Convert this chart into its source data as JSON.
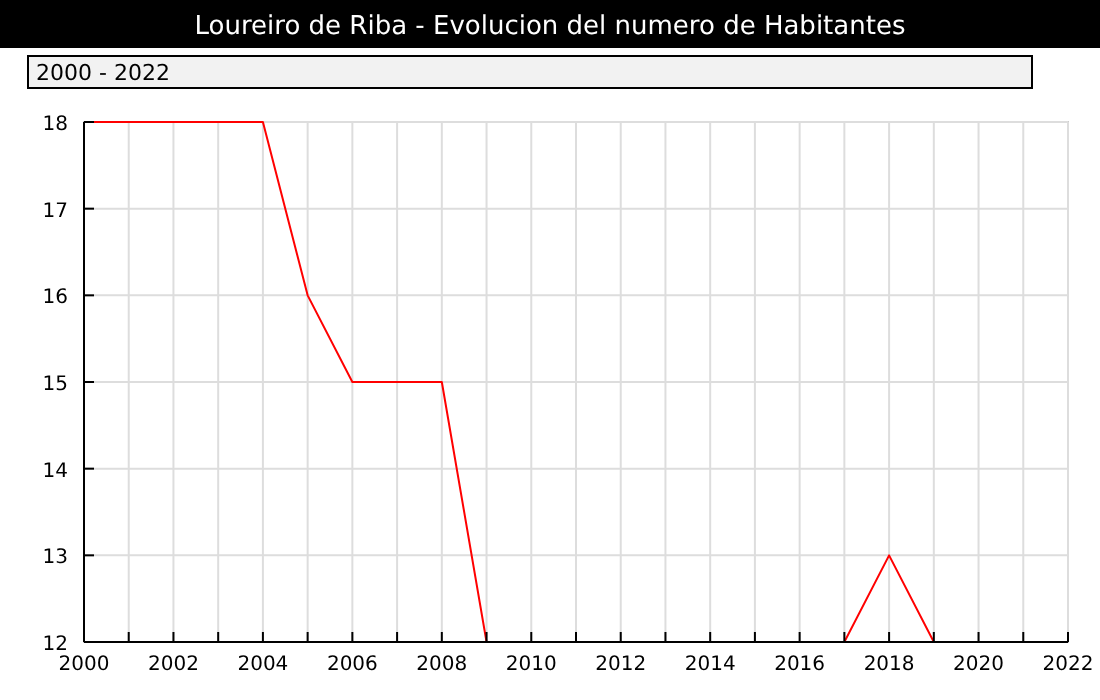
{
  "chart_data": {
    "type": "line",
    "title": "Loureiro de Riba - Evolucion del numero de Habitantes",
    "subtitle": "2000 - 2022",
    "x": [
      2000,
      2001,
      2002,
      2003,
      2004,
      2005,
      2006,
      2007,
      2008,
      2009,
      2010,
      2011,
      2012,
      2013,
      2014,
      2015,
      2016,
      2017,
      2018,
      2019
    ],
    "series": [
      {
        "color": "#ff0000",
        "values": [
          18,
          18,
          18,
          18,
          18,
          16,
          15,
          15,
          15,
          12,
          null,
          null,
          null,
          null,
          null,
          null,
          null,
          12,
          13,
          12
        ]
      }
    ],
    "xlim": [
      2000,
      2022
    ],
    "ylim": [
      12,
      18
    ],
    "xticks": [
      2000,
      {
        "value": 2001,
        "label": null
      },
      2002,
      {
        "value": 2003,
        "label": null
      },
      2004,
      {
        "value": 2005,
        "label": null
      },
      2006,
      {
        "value": 2007,
        "label": null
      },
      2008,
      {
        "value": 2009,
        "label": null
      },
      2010,
      {
        "value": 2011,
        "label": null
      },
      2012,
      {
        "value": 2013,
        "label": null
      },
      2014,
      {
        "value": 2015,
        "label": null
      },
      2016,
      {
        "value": 2017,
        "label": null
      },
      2018,
      {
        "value": 2019,
        "label": null
      },
      2020,
      {
        "value": 2021,
        "label": null
      },
      2022
    ],
    "yticks": [
      12,
      13,
      14,
      15,
      16,
      17,
      18
    ],
    "grid": true,
    "marker": "none",
    "line_style": "solid"
  }
}
